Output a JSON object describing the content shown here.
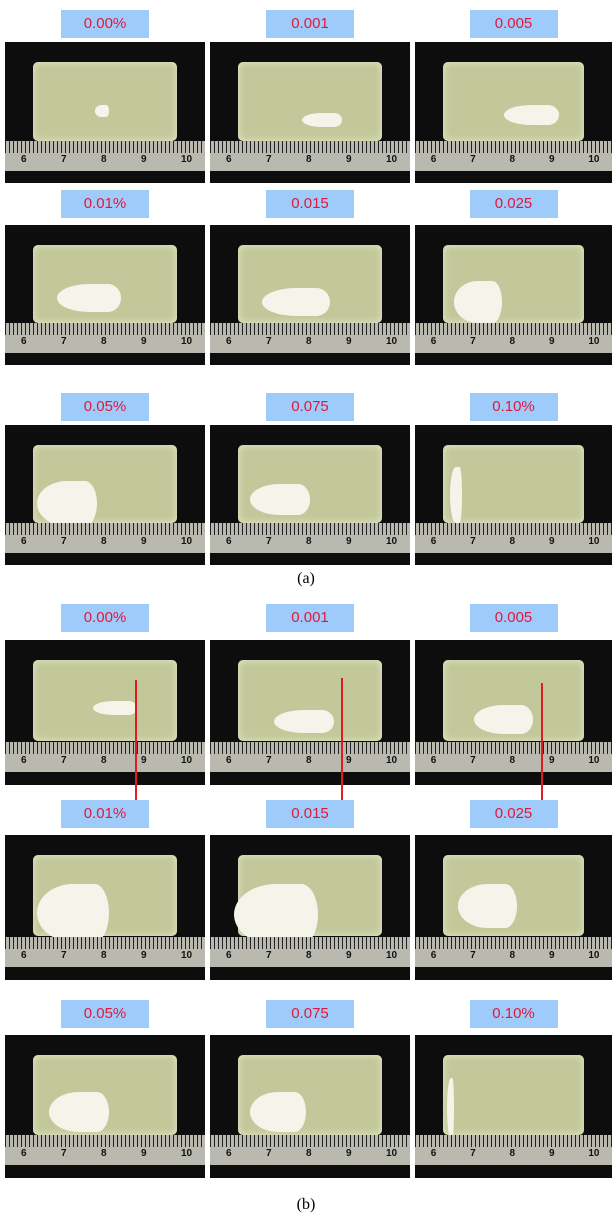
{
  "panels": [
    {
      "caption": "(a)",
      "labels": [
        "0.00%",
        "0.001",
        "0.005",
        "0.01%",
        "0.015",
        "0.025",
        "0.05%",
        "0.075",
        "0.10%"
      ]
    },
    {
      "caption": "(b)",
      "labels": [
        "0.00%",
        "0.001",
        "0.005",
        "0.01%",
        "0.015",
        "0.025",
        "0.05%",
        "0.075",
        "0.10%"
      ]
    }
  ],
  "ruler_labels": [
    "6",
    "7",
    "8",
    "9",
    "10"
  ]
}
